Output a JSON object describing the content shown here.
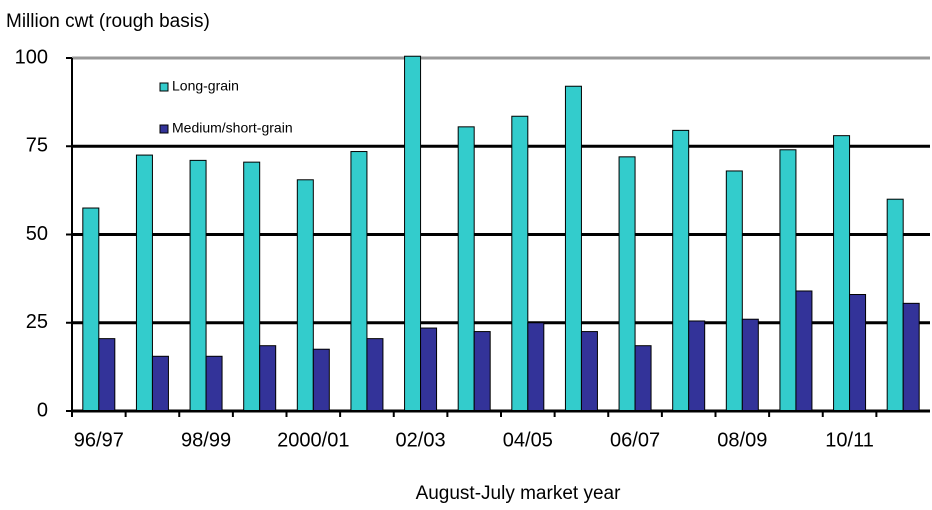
{
  "chart_data": {
    "type": "bar",
    "y_label": "Million cwt (rough basis)",
    "x_label": "August-July market year",
    "categories": [
      "96/97",
      null,
      "98/99",
      null,
      "2000/01",
      null,
      "02/03",
      null,
      "04/05",
      null,
      "06/07",
      null,
      "08/09",
      null,
      "10/11",
      null
    ],
    "series": [
      {
        "name": "Long-grain",
        "color": "#33cccc",
        "values": [
          57.5,
          72.5,
          71,
          70.5,
          65.5,
          73.5,
          100.5,
          80.5,
          83.5,
          92,
          72,
          79.5,
          68,
          74,
          78,
          60
        ]
      },
      {
        "name": "Medium/short-grain",
        "color": "#333399",
        "values": [
          20.5,
          15.5,
          15.5,
          18.5,
          17.5,
          20.5,
          23.5,
          22.5,
          25,
          22.5,
          18.5,
          25.5,
          26,
          34,
          33,
          30.5
        ]
      }
    ],
    "ylim": [
      0,
      100
    ],
    "yticks": [
      0,
      25,
      50,
      75,
      100
    ],
    "grid": true
  }
}
